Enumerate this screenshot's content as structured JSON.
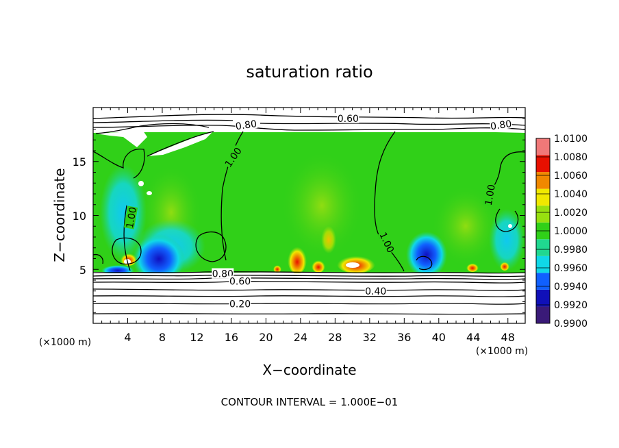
{
  "chart_data": {
    "type": "heatmap",
    "title": "saturation ratio",
    "xlabel": "X−coordinate",
    "ylabel": "Z−coordinate",
    "x_unit": "(×1000 m)",
    "z_unit": "(×1000 m)",
    "xlim": [
      0,
      50
    ],
    "ylim": [
      0,
      20
    ],
    "x_ticks": [
      4,
      8,
      12,
      16,
      20,
      24,
      28,
      32,
      36,
      40,
      44,
      48
    ],
    "x_tick_labels": [
      "4",
      "8",
      "12",
      "16",
      "20",
      "24",
      "28",
      "32",
      "36",
      "40",
      "44",
      "48"
    ],
    "y_ticks": [
      5,
      10,
      15
    ],
    "y_tick_labels": [
      "5",
      "10",
      "15"
    ],
    "colorbar": {
      "levels": [
        0.99,
        0.992,
        0.994,
        0.996,
        0.998,
        1.0,
        1.002,
        1.004,
        1.006,
        1.008,
        1.01
      ],
      "labels": [
        "0.9900",
        "0.9920",
        "0.9940",
        "0.9960",
        "0.9980",
        "1.0000",
        "1.0020",
        "1.0040",
        "1.0060",
        "1.0080",
        "1.0100"
      ],
      "colors": [
        "#3a1a78",
        "#1010b8",
        "#1060ff",
        "#10d8e8",
        "#20d890",
        "#30d018",
        "#98e010",
        "#f0e800",
        "#f08800",
        "#e81000",
        "#f07878"
      ]
    },
    "contour_labels": [
      {
        "text": "0.60",
        "x": 29.5,
        "z": 19.0
      },
      {
        "text": "0.80",
        "x": 17.7,
        "z": 18.4
      },
      {
        "text": "0.80",
        "x": 47.2,
        "z": 18.4
      },
      {
        "text": "1.00",
        "x": 16.2,
        "z": 15.4
      },
      {
        "text": "1.00",
        "x": 4.4,
        "z": 9.8
      },
      {
        "text": "1.00",
        "x": 45.9,
        "z": 11.9
      },
      {
        "text": "1.00",
        "x": 34.0,
        "z": 7.5
      },
      {
        "text": "0.80",
        "x": 15.0,
        "z": 4.6
      },
      {
        "text": "0.60",
        "x": 17.0,
        "z": 3.9
      },
      {
        "text": "0.40",
        "x": 32.7,
        "z": 3.0
      },
      {
        "text": "0.20",
        "x": 17.0,
        "z": 1.8
      }
    ],
    "contour_interval_text": "CONTOUR INTERVAL = 1.000E−01"
  }
}
